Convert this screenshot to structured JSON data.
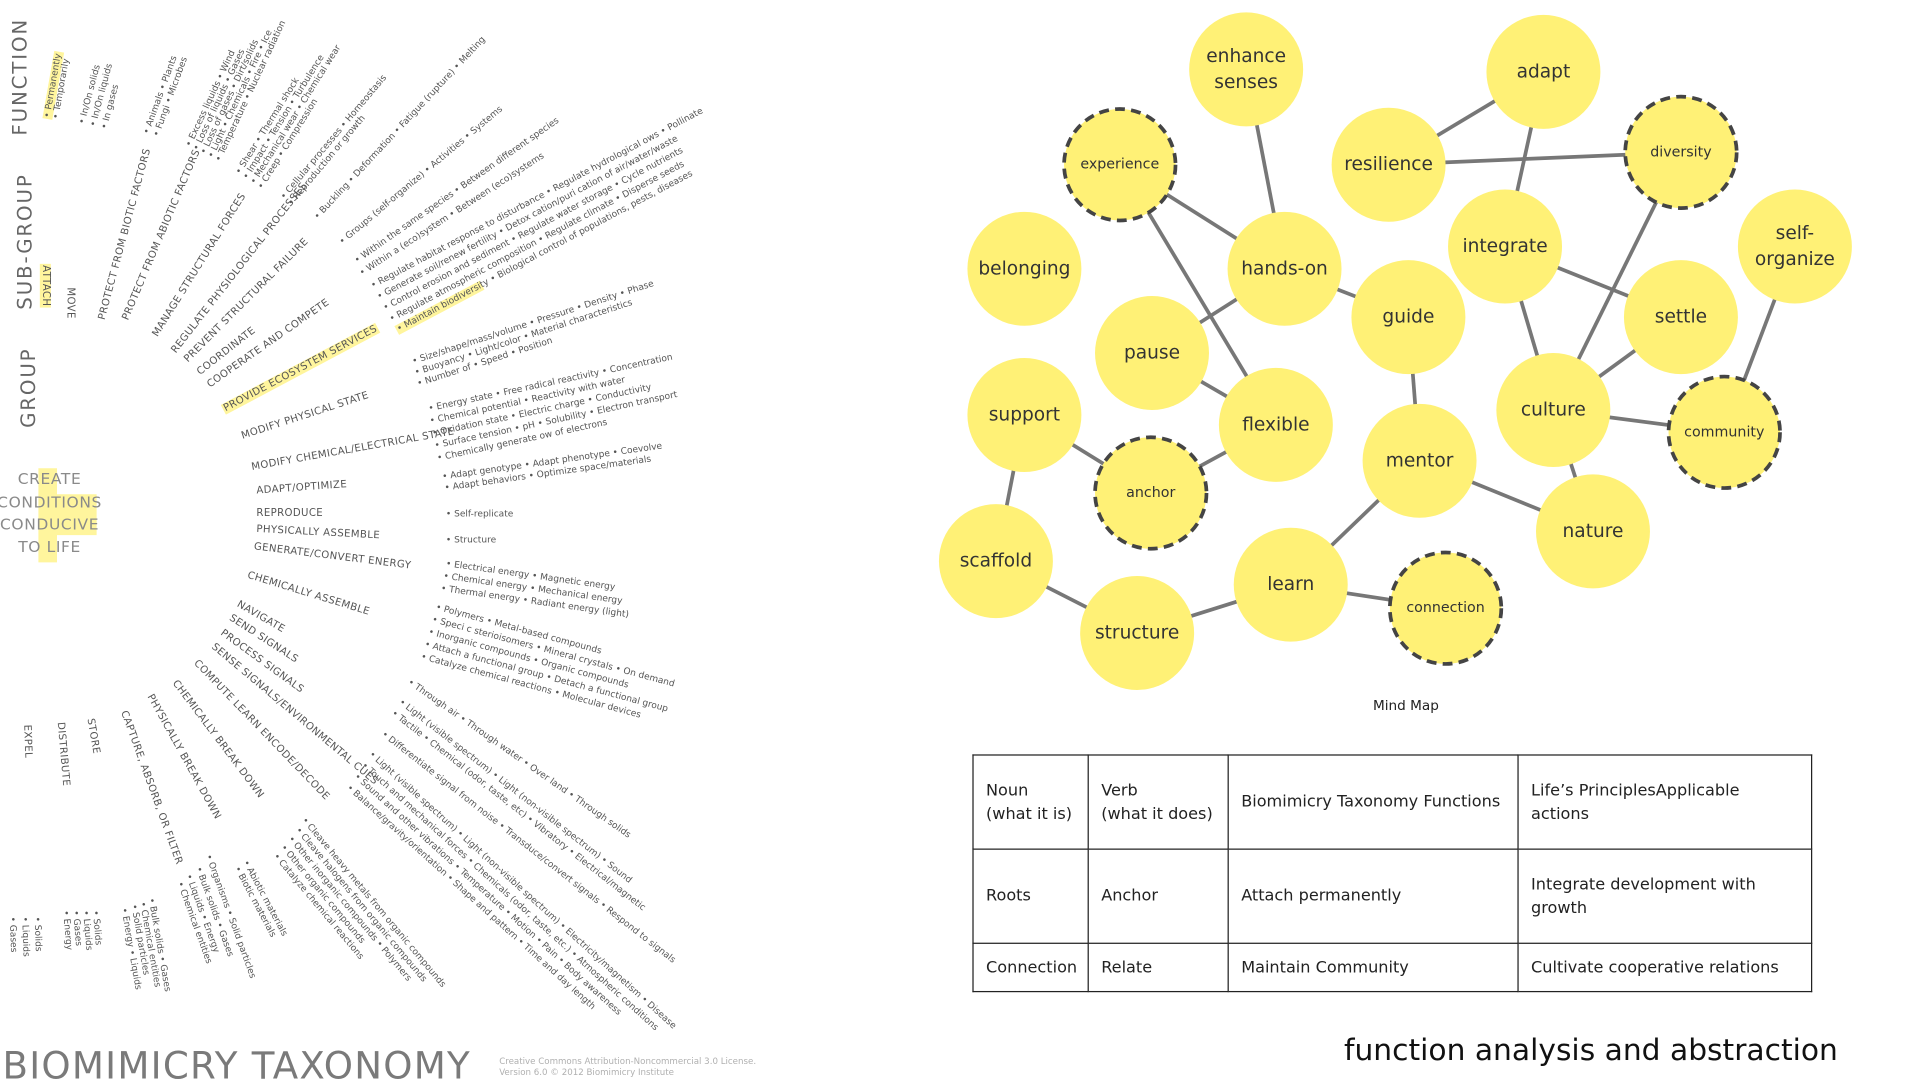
{
  "taxonomy": {
    "levels": [
      "FUNCTION",
      "SUB-GROUP",
      "GROUP"
    ],
    "center": [
      "CREATE",
      "CONDITIONS",
      "CONDUCIVE",
      "TO LIFE"
    ],
    "labels": [
      "PROTECT FROM BIOTIC FACTORS",
      "PROTECT FROM ABIOTIC FACTORS",
      "MANAGE STRUCTURAL FORCES",
      "REGULATE PHYSIOLOGICAL PROCESSES",
      "PREVENT STRUCTURAL FAILURE",
      "COORDINATE",
      "COOPERATE AND COMPETE",
      "PROVIDE ECOSYSTEM SERVICES",
      "MODIFY PHYSICAL STATE",
      "MODIFY CHEMICAL/ELECTRICAL STATE",
      "ADAPT/OPTIMIZE",
      "REPRODUCE",
      "PHYSICALLY ASSEMBLE",
      "GENERATE/CONVERT ENERGY",
      "CHEMICALLY ASSEMBLE",
      "NAVIGATE",
      "SEND SIGNALS",
      "PROCESS SIGNALS",
      "SENSE SIGNALS/ENVIRONMENTAL CUES",
      "COMPUTE LEARN ENCODE/DECODE",
      "CHEMICALLY BREAK DOWN",
      "PHYSICALLY BREAK DOWN",
      "CAPTURE, ABSORB, OR FILTER",
      "STORE",
      "DISTRIBUTE",
      "EXPEL",
      "ATTACH",
      "MOVE"
    ],
    "bullets": [
      "• Permanently",
      "• Temporarily",
      "• In/On solids",
      "• In/On liquids",
      "• In gases",
      "• Animals • Plants",
      "• Fungi • Microbes",
      "• Excess liquids • Wind",
      "• Loss of liquids • Gases",
      "• Loss of gases • Dirt/solids",
      "• Light • Chemicals • Fire • Ice",
      "• Temperature • Nuclear radiation",
      "• Shear • Thermal shock",
      "• Impact • Tension • Turbulence",
      "• Mechanical wear • Chemical wear",
      "• Creep • Compression",
      "• Cellular processes • Homeostasis",
      "• Reproduction or growth",
      "• Buckling • Deformation • Fatigue (rupture) • Melting",
      "• Groups (self-organize) • Activities • Systems",
      "• Within the same species • Between different species",
      "• Within a (eco)system • Between (eco)systems",
      "• Regulate habitat response to disturbance • Regulate hydrological  ows • Pollinate",
      "• Generate soil/renew fertility • Detox cation/puri cation of air/water/waste",
      "• Control erosion and sediment • Regulate water storage • Cycle nutrients",
      "• Regulate atmospheric composition • Regulate climate • Disperse seeds",
      "• Maintain biodiversity • Biological control of populations, pests, diseases",
      "• Size/shape/mass/volume • Pressure • Density • Phase",
      "• Buoyancy • Light/color • Material characteristics",
      "• Number of • Speed • Position",
      "• Energy state • Free radical reactivity • Concentration",
      "• Chemical potential • Reactivity with water",
      "• Oxidation state • Electric charge • Conductivity",
      "• Surface tension • pH • Solubility • Electron transport",
      "• Chemically generate  ow of electrons",
      "• Adapt genotype • Adapt phenotype • Coevolve",
      "• Adapt behaviors • Optimize space/materials",
      "• Self-replicate",
      "• Structure",
      "• Electrical energy • Magnetic energy",
      "• Chemical energy • Mechanical energy",
      "• Thermal energy • Radiant energy (light)",
      "• Polymers • Metal-based compounds",
      "• Speci c sterioisomers • Mineral crystals • On demand",
      "• Inorganic compounds • Organic compounds",
      "• Attach a functional group • Detach a functional group",
      "• Catalyze chemical reactions • Molecular devices",
      "• Through air • Through water • Over land • Through solids",
      "• Light (visible spectrum) • Light (non-visible spectrum) • Sound",
      "• Tactile • Chemical (odor, taste, etc) • Vibratory • Electrical/magnetic",
      "• Differentiate signal from noise • Transduce/convert signals • Respond to signals",
      "• Light (visible spectrum) • Light (non-visible spectrum) • Electricity/magnetism • Disease",
      "• Touch and mechanical forces • Chemicals (odor, taste, etc.) • Atmospheric conditions",
      "• Sound and other vibrations • Temperature • Motion • Pain • Body awareness",
      "• Balance/gravity/orientation • Shape and pattern • Time and day length",
      "• Cleave heavy metals from organic compounds",
      "• Cleave halogens from organic compounds",
      "• Other inorganic compounds • Polymers",
      "• Other organic compounds",
      "• Catalyze chemical reactions",
      "• Abiotic materials",
      "• Biotic materials",
      "• Organisms • Solid particles",
      "• Bulk solids • Gases",
      "• Liquids • Energy",
      "• Chemical entities",
      "• Bulk solids • Gases",
      "• Chemical entities",
      "• Solid particles",
      "• Energy • Liquids",
      "• Solids",
      "• Liquids",
      "• Gases",
      "• Energy",
      "• Solids",
      "• Liquids",
      "• Gases"
    ],
    "title": "BIOMIMICRY TAXONOMY",
    "license": [
      "Creative Commons Attribution-Noncommercial 3.0 License.",
      "Version 6.0 © 2012 Biomimicry Institute"
    ]
  },
  "mind_map": {
    "caption": "Mind Map",
    "nodes": [
      {
        "label": [
          "enhance",
          "senses"
        ]
      },
      {
        "label": [
          "adapt"
        ]
      },
      {
        "label": [
          "experience"
        ],
        "dashed": true
      },
      {
        "label": [
          "resilience"
        ]
      },
      {
        "label": [
          "diversity"
        ],
        "dashed": true
      },
      {
        "label": [
          "self-",
          "organize"
        ]
      },
      {
        "label": [
          "belonging"
        ]
      },
      {
        "label": [
          "hands-on"
        ]
      },
      {
        "label": [
          "integrate"
        ]
      },
      {
        "label": [
          "guide"
        ]
      },
      {
        "label": [
          "settle"
        ]
      },
      {
        "label": [
          "pause"
        ]
      },
      {
        "label": [
          "support"
        ]
      },
      {
        "label": [
          "flexible"
        ]
      },
      {
        "label": [
          "culture"
        ]
      },
      {
        "label": [
          "community"
        ],
        "dashed": true
      },
      {
        "label": [
          "anchor"
        ],
        "dashed": true
      },
      {
        "label": [
          "mentor"
        ]
      },
      {
        "label": [
          "nature"
        ]
      },
      {
        "label": [
          "scaffold"
        ]
      },
      {
        "label": [
          "learn"
        ]
      },
      {
        "label": [
          "connection"
        ],
        "dashed": true
      },
      {
        "label": [
          "structure"
        ]
      }
    ]
  },
  "table": {
    "rows": [
      [
        [
          "Noun",
          "(what it is)"
        ],
        [
          "Verb",
          "(what it does)"
        ],
        [
          "Biomimicry Taxonomy Functions"
        ],
        [
          "Life’s PrinciplesApplicable actions"
        ]
      ],
      [
        [
          "Roots"
        ],
        [
          "Anchor"
        ],
        [
          "Attach permanently"
        ],
        [
          "Integrate development with",
          "growth"
        ]
      ],
      [
        [
          "Connection"
        ],
        [
          "Relate"
        ],
        [
          "Maintain Community"
        ],
        [
          "Cultivate cooperative relations"
        ]
      ]
    ]
  },
  "footer_title": "function analysis and abstraction"
}
